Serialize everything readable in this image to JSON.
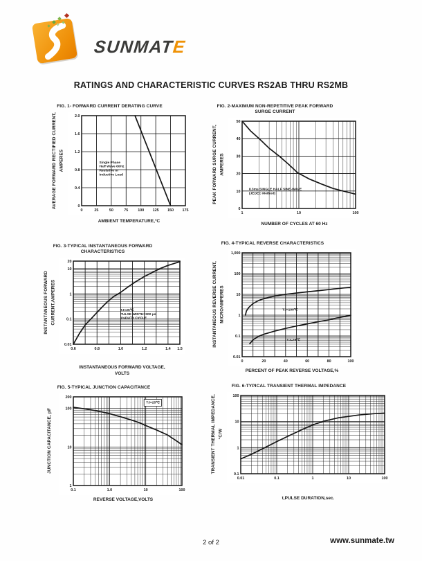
{
  "page": {
    "title": "RATINGS AND CHARACTERISTIC CURVES RS2AB THRU RS2MB",
    "footer_page": "2 of 2",
    "footer_site": "www.sunmate.tw"
  },
  "brand": {
    "name_main": "SUNMAT",
    "name_accent": "E",
    "orange": "#EF9104",
    "dark": "#3B3B39",
    "green": "#7FB64B"
  },
  "chart_data": [
    {
      "type": "line",
      "title": "FIG. 1- FORWARD CURRENT DERATING CURVE",
      "ylabel": "AVERAGE FORWARD RECTIFIED CURRENT,\nAMPERES",
      "xlabel": "AMBIENT TEMPERATURE,°C",
      "x": {
        "scale": "linear",
        "min": 0,
        "max": 175,
        "grid_step": 25,
        "ticks": [
          {
            "v": 0,
            "l": "0"
          },
          {
            "v": 25,
            "l": "25"
          },
          {
            "v": 50,
            "l": "50"
          },
          {
            "v": 75,
            "l": "75"
          },
          {
            "v": 100,
            "l": "100"
          },
          {
            "v": 125,
            "l": "125"
          },
          {
            "v": 150,
            "l": "150"
          },
          {
            "v": 175,
            "l": "175"
          }
        ]
      },
      "y": {
        "scale": "linear",
        "min": 0,
        "max": 2.0,
        "grid_step": 0.4,
        "ticks": [
          {
            "v": 0,
            "l": "0"
          },
          {
            "v": 0.4,
            "l": "0.4"
          },
          {
            "v": 0.8,
            "l": "0.8"
          },
          {
            "v": 1.2,
            "l": "1.2"
          },
          {
            "v": 1.6,
            "l": "1.6"
          },
          {
            "v": 2.0,
            "l": "2.0"
          }
        ]
      },
      "series": [
        {
          "name": "derating",
          "points": [
            [
              90,
              2.0
            ],
            [
              150,
              0
            ]
          ]
        }
      ],
      "annotations": [
        {
          "text": "Single Phase\nHalf Wave 60Hz\nResistive or\nInductive Load",
          "fx": 0.17,
          "fy": 0.53,
          "box": false
        }
      ]
    },
    {
      "type": "line",
      "title": "FIG. 2-MAXIMUM NON-REPETITIVE PEAK FORWARD\nSURGE CURRENT",
      "ylabel": "PEAK  FORWARD SURGE CURRENT,\nAMPERES",
      "xlabel": "NUMBER OF CYCLES AT 60 Hz",
      "x": {
        "scale": "log",
        "min": 1,
        "max": 100,
        "ticks": [
          {
            "v": 1,
            "l": "1"
          },
          {
            "v": 10,
            "l": "10"
          },
          {
            "v": 100,
            "l": "100"
          }
        ]
      },
      "y": {
        "scale": "linear",
        "min": 0,
        "max": 50,
        "grid_step": 10,
        "ticks": [
          {
            "v": 0,
            "l": "0"
          },
          {
            "v": 10,
            "l": "10"
          },
          {
            "v": 20,
            "l": "20"
          },
          {
            "v": 30,
            "l": "30"
          },
          {
            "v": 40,
            "l": "40"
          },
          {
            "v": 50,
            "l": "50"
          }
        ]
      },
      "series": [
        {
          "name": "surge",
          "points": [
            [
              1,
              50
            ],
            [
              1.4,
              44.5
            ],
            [
              2,
              40
            ],
            [
              3,
              34.5
            ],
            [
              4.5,
              30
            ],
            [
              6.5,
              25.5
            ],
            [
              9.5,
              20.5
            ],
            [
              15,
              17
            ],
            [
              25,
              14
            ],
            [
              40,
              11.5
            ],
            [
              60,
              10
            ],
            [
              80,
              9
            ],
            [
              100,
              8.2
            ]
          ]
        }
      ],
      "annotations": [
        {
          "text": "8.3ms SINGLE HALF SINE-WAVE\n(JEDEC Method)",
          "fx": 0.06,
          "fy": 0.79,
          "box": false
        }
      ]
    },
    {
      "type": "line",
      "title": "FIG. 3-TYPICAL INSTANTANEOUS FORWARD\nCHARACTERISTICS",
      "ylabel": "INSTANTANEOUS FORWARD\nCURRENT,AMPERES",
      "xlabel": "INSTANTANEOUS FORWARD VOLTAGE,\nVOLTS",
      "x": {
        "scale": "linear",
        "min": 0.6,
        "max": 1.5,
        "grid_step": 0.1,
        "ticks": [
          {
            "v": 0.6,
            "l": "0.6"
          },
          {
            "v": 0.8,
            "l": "0.8"
          },
          {
            "v": 1.0,
            "l": "1.0"
          },
          {
            "v": 1.2,
            "l": "1.2"
          },
          {
            "v": 1.4,
            "l": "1.4"
          },
          {
            "v": 1.5,
            "l": "1.5"
          }
        ]
      },
      "y": {
        "scale": "log",
        "min": 0.01,
        "max": 20,
        "ticks": [
          {
            "v": 20,
            "l": "20"
          },
          {
            "v": 10,
            "l": "10"
          },
          {
            "v": 1,
            "l": "1"
          },
          {
            "v": 0.1,
            "l": "0.1"
          },
          {
            "v": 0.01,
            "l": "0.01"
          }
        ]
      },
      "series": [
        {
          "name": "forward",
          "points": [
            [
              0.6,
              0.01
            ],
            [
              0.65,
              0.026
            ],
            [
              0.7,
              0.058
            ],
            [
              0.76,
              0.115
            ],
            [
              0.82,
              0.23
            ],
            [
              0.88,
              0.45
            ],
            [
              0.94,
              0.78
            ],
            [
              1.0,
              1.15
            ],
            [
              1.06,
              1.85
            ],
            [
              1.12,
              2.9
            ],
            [
              1.2,
              4.9
            ],
            [
              1.28,
              7.6
            ],
            [
              1.33,
              10
            ],
            [
              1.4,
              13.5
            ],
            [
              1.5,
              19
            ]
          ]
        }
      ],
      "annotations": [
        {
          "text": "TJ=25℃\nPULSE WIDTH=300 μs\n1%DUTY CYCLE",
          "fx": 0.44,
          "fy": 0.6,
          "box": false
        }
      ]
    },
    {
      "type": "line",
      "title": "FIG. 4-TYPICAL REVERSE CHARACTERISTICS",
      "ylabel": "INSTANTANEOUS REVERSE CURRENT,\nMICROAMPERES",
      "xlabel": "PERCENT OF PEAK REVERSE VOLTAGE,%",
      "x": {
        "scale": "linear",
        "min": 0,
        "max": 100,
        "grid_step": 10,
        "ticks": [
          {
            "v": 0,
            "l": "0"
          },
          {
            "v": 20,
            "l": "20"
          },
          {
            "v": 40,
            "l": "40"
          },
          {
            "v": 60,
            "l": "60"
          },
          {
            "v": 80,
            "l": "80"
          },
          {
            "v": 100,
            "l": "100"
          }
        ]
      },
      "y": {
        "scale": "log",
        "min": 0.01,
        "max": 1000,
        "ticks": [
          {
            "v": 1000,
            "l": "1,000"
          },
          {
            "v": 100,
            "l": "100"
          },
          {
            "v": 10,
            "l": "10"
          },
          {
            "v": 1,
            "l": "1"
          },
          {
            "v": 0.1,
            "l": "0.1"
          },
          {
            "v": 0.01,
            "l": "0.01"
          }
        ]
      },
      "series": [
        {
          "name": "TJ=100C",
          "points": [
            [
              3,
              1.0
            ],
            [
              4,
              1.6
            ],
            [
              6,
              2.3
            ],
            [
              10,
              3.6
            ],
            [
              15,
              5.0
            ],
            [
              20,
              6.3
            ],
            [
              30,
              8.3
            ],
            [
              40,
              10
            ],
            [
              50,
              11.6
            ],
            [
              60,
              13.2
            ],
            [
              70,
              15
            ],
            [
              80,
              17
            ],
            [
              90,
              19.5
            ],
            [
              100,
              22
            ]
          ]
        },
        {
          "name": "TJ=25C",
          "points": [
            [
              7,
              0.042
            ],
            [
              10,
              0.065
            ],
            [
              15,
              0.095
            ],
            [
              20,
              0.12
            ],
            [
              30,
              0.17
            ],
            [
              40,
              0.23
            ],
            [
              50,
              0.3
            ],
            [
              60,
              0.38
            ],
            [
              70,
              0.48
            ],
            [
              80,
              0.6
            ],
            [
              90,
              0.78
            ],
            [
              100,
              0.98
            ]
          ]
        }
      ],
      "annotations": [
        {
          "text": "TJ=100℃",
          "fx": 0.37,
          "fy": 0.555,
          "box": false
        },
        {
          "text": "TJ=25℃",
          "fx": 0.41,
          "fy": 0.845,
          "box": false
        }
      ]
    },
    {
      "type": "line",
      "title": "FIG. 5-TYPICAL JUNCTION CAPACITANCE",
      "ylabel": "JUNCTION  CAPACITANCE, pF",
      "xlabel": "REVERSE VOLTAGE,VOLTS",
      "x": {
        "scale": "log",
        "min": 0.1,
        "max": 100,
        "ticks": [
          {
            "v": 0.1,
            "l": "0.1"
          },
          {
            "v": 1,
            "l": "1.0"
          },
          {
            "v": 10,
            "l": "10"
          },
          {
            "v": 100,
            "l": "100"
          }
        ]
      },
      "y": {
        "scale": "log",
        "min": 1,
        "max": 200,
        "ticks": [
          {
            "v": 200,
            "l": "200"
          },
          {
            "v": 100,
            "l": "100"
          },
          {
            "v": 10,
            "l": "10"
          },
          {
            "v": 1,
            "l": "1"
          }
        ]
      },
      "series": [
        {
          "name": "capacitance",
          "points": [
            [
              0.1,
              107
            ],
            [
              0.2,
              98
            ],
            [
              0.4,
              88
            ],
            [
              0.7,
              79
            ],
            [
              1,
              73
            ],
            [
              2,
              61
            ],
            [
              4,
              50
            ],
            [
              7,
              42
            ],
            [
              10,
              36
            ],
            [
              20,
              27.5
            ],
            [
              40,
              20.5
            ],
            [
              70,
              14.5
            ],
            [
              100,
              11.5
            ]
          ]
        }
      ],
      "annotations": [
        {
          "text": "TJ=25℃",
          "fx": 0.67,
          "fy": 0.075,
          "box": true
        }
      ]
    },
    {
      "type": "line",
      "title": "FIG. 6-TYPICAL TRANSIENT THERMAL IMPEDANCE",
      "ylabel": "TRANSIENT THERMAL IMPEDANCE,\n°C/W",
      "xlabel": "t,PULSE DURATION,sec.",
      "x": {
        "scale": "log",
        "min": 0.01,
        "max": 100,
        "ticks": [
          {
            "v": 0.01,
            "l": "0.01"
          },
          {
            "v": 0.1,
            "l": "0.1"
          },
          {
            "v": 1,
            "l": "1"
          },
          {
            "v": 10,
            "l": "10"
          },
          {
            "v": 100,
            "l": "100"
          }
        ]
      },
      "y": {
        "scale": "log",
        "min": 0.1,
        "max": 100,
        "ticks": [
          {
            "v": 100,
            "l": "100"
          },
          {
            "v": 10,
            "l": "10"
          },
          {
            "v": 1,
            "l": "1"
          },
          {
            "v": 0.1,
            "l": "0.1"
          }
        ]
      },
      "series": [
        {
          "name": "thermal",
          "points": [
            [
              0.01,
              0.37
            ],
            [
              0.02,
              0.56
            ],
            [
              0.05,
              1.05
            ],
            [
              0.1,
              1.7
            ],
            [
              0.2,
              2.7
            ],
            [
              0.5,
              4.9
            ],
            [
              1,
              7.4
            ],
            [
              2,
              10.3
            ],
            [
              5,
              13.8
            ],
            [
              10,
              15.8
            ],
            [
              20,
              18
            ],
            [
              50,
              20
            ],
            [
              100,
              21
            ]
          ]
        }
      ],
      "annotations": []
    }
  ]
}
